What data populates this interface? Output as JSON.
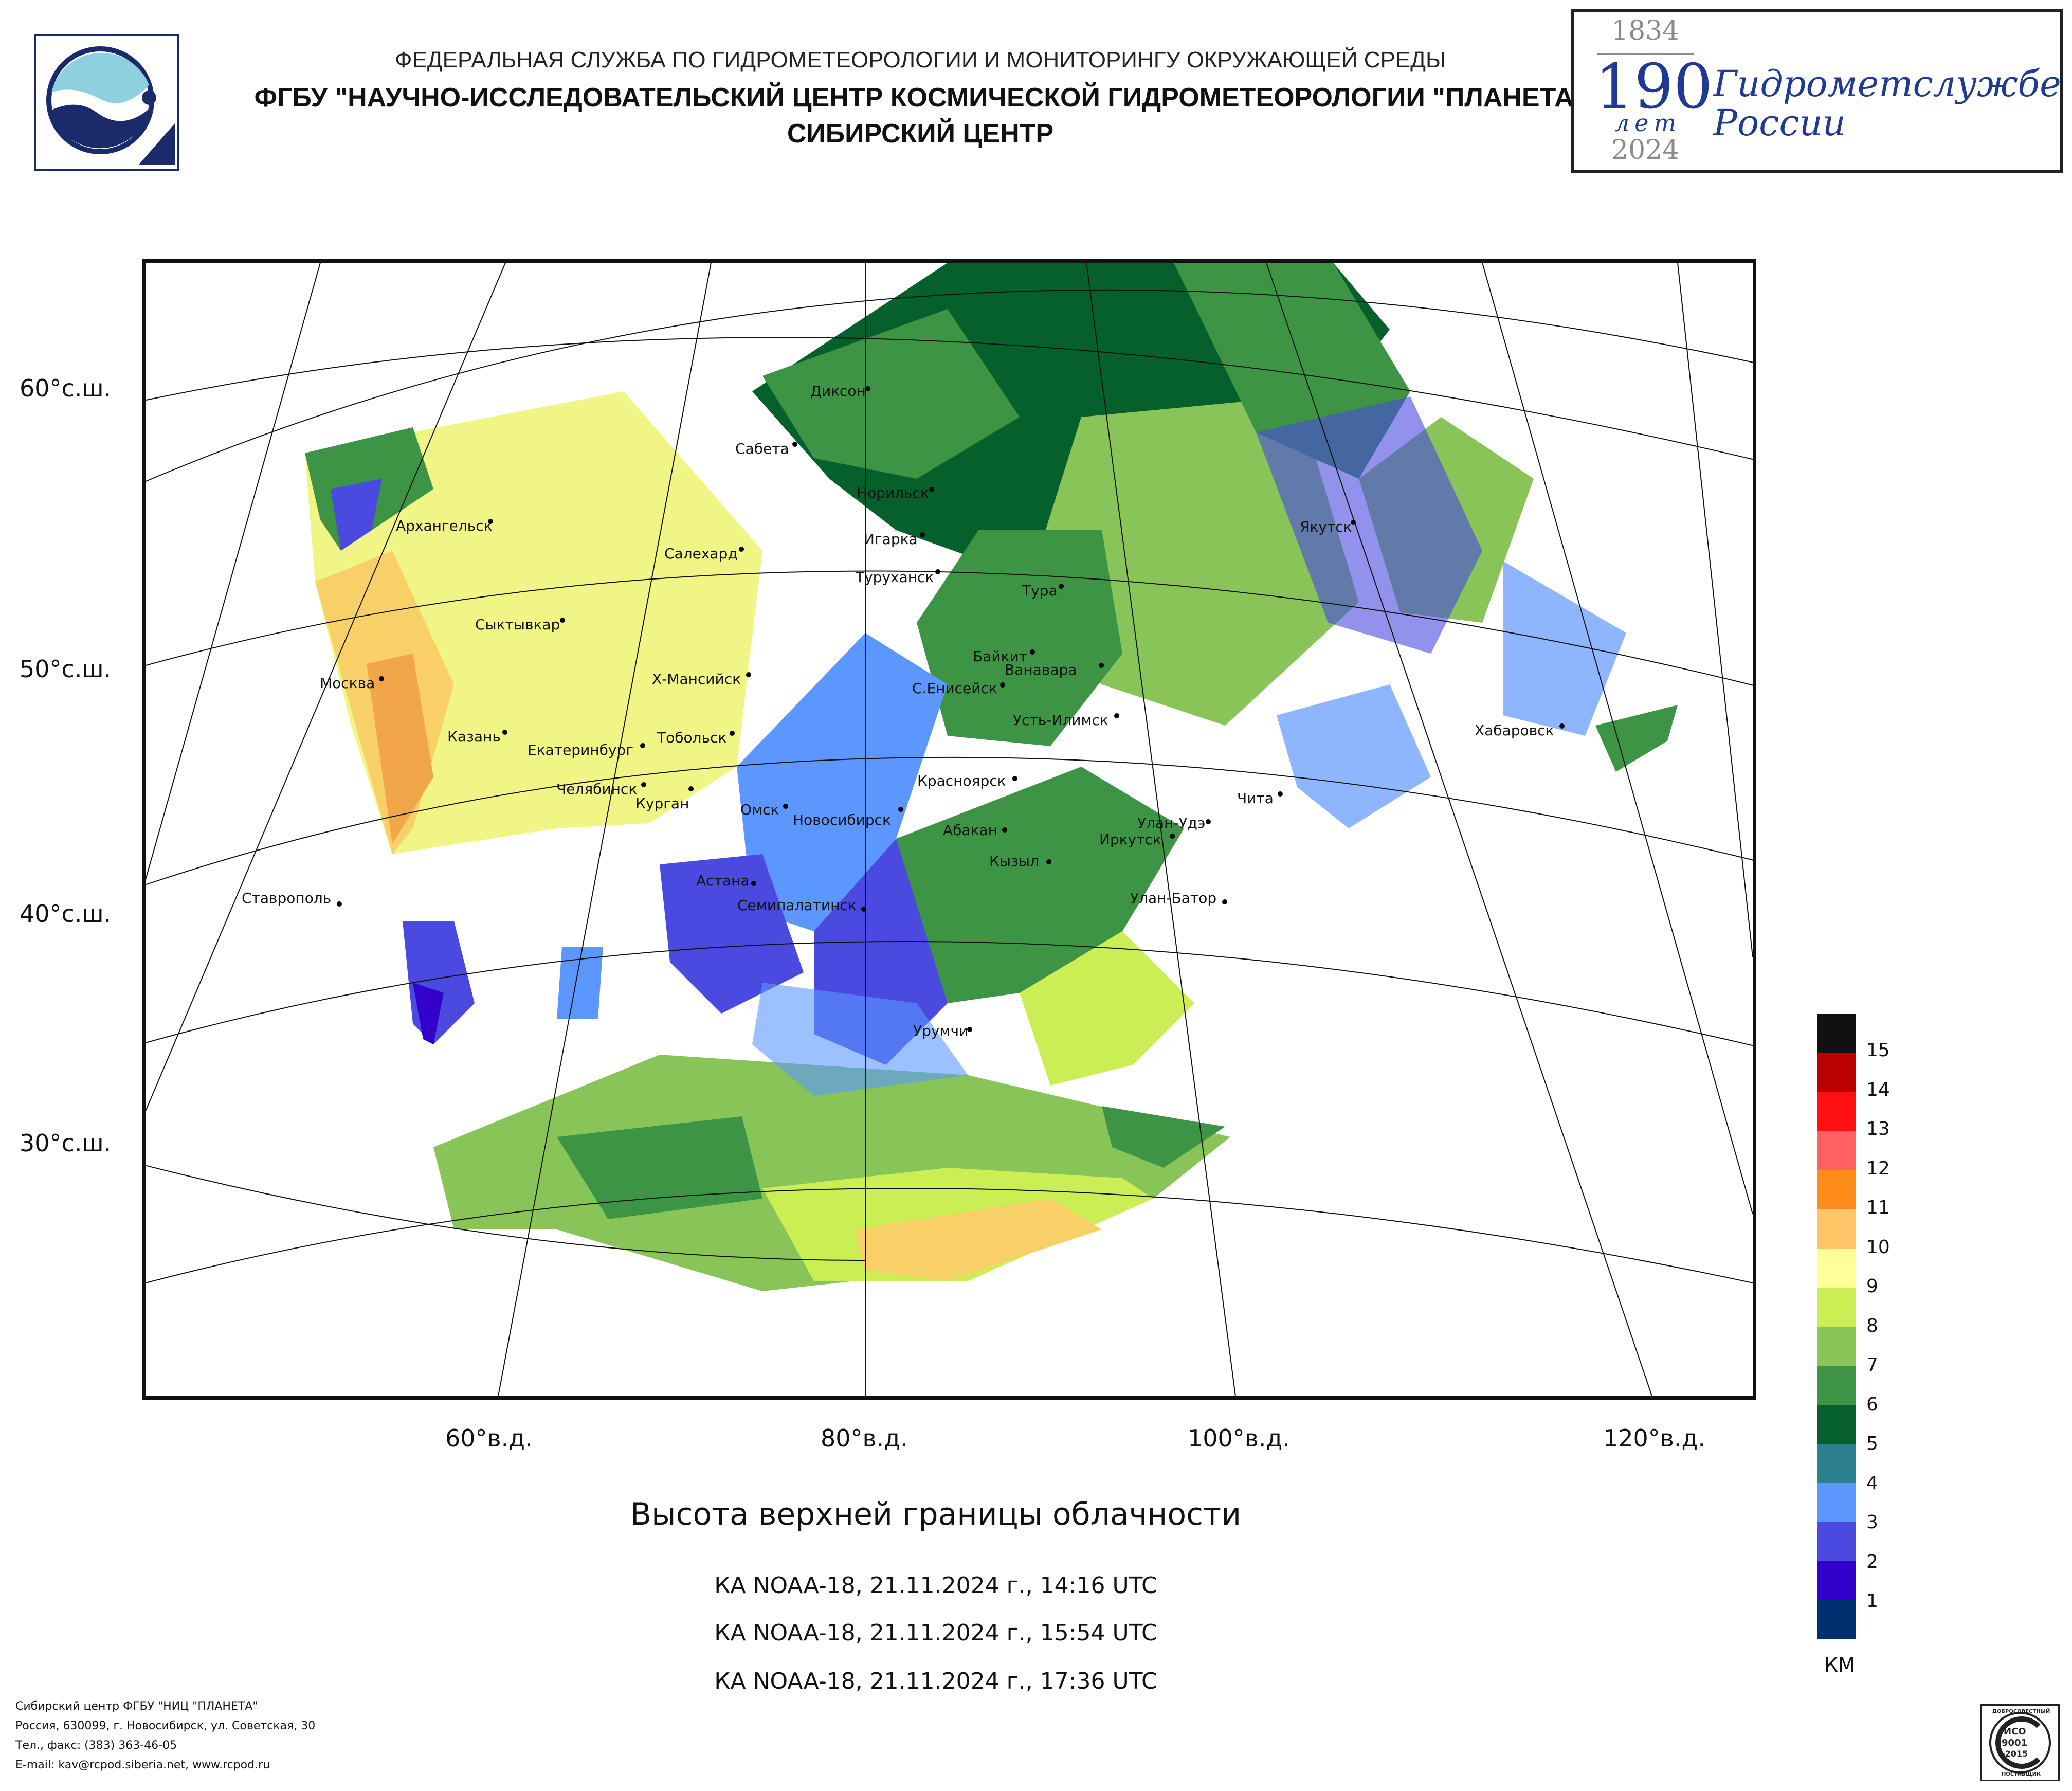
{
  "header": {
    "line1": "ФЕДЕРАЛЬНАЯ СЛУЖБА ПО ГИДРОМЕТЕОРОЛОГИИ И МОНИТОРИНГУ ОКРУЖАЮЩЕЙ СРЕДЫ",
    "line2": "ФГБУ \"НАУЧНО-ИССЛЕДОВАТЕЛЬСКИЙ ЦЕНТР КОСМИЧЕСКОЙ ГИДРОМЕТЕОРОЛОГИИ \"ПЛАНЕТА\"",
    "line3": "СИБИРСКИЙ ЦЕНТР"
  },
  "anniversary": {
    "year_start": "1834",
    "number": "190",
    "unit": "лет",
    "year_end": "2024",
    "text_line1": "Гидрометслужбе",
    "text_line2": "России"
  },
  "map": {
    "lat_labels": [
      "60°с.ш.",
      "50°с.ш.",
      "40°с.ш.",
      "30°с.ш."
    ],
    "lon_labels": [
      "60°в.д.",
      "80°в.д.",
      "100°в.д.",
      "120°в.д."
    ],
    "cities": [
      {
        "name": "Диксон"
      },
      {
        "name": "Сабета"
      },
      {
        "name": "Норильск"
      },
      {
        "name": "Архангельск"
      },
      {
        "name": "Салехард"
      },
      {
        "name": "Игарка"
      },
      {
        "name": "Туруханск"
      },
      {
        "name": "Тура"
      },
      {
        "name": "Якутск"
      },
      {
        "name": "Сыктывкар"
      },
      {
        "name": "Байкит"
      },
      {
        "name": "Ванавара"
      },
      {
        "name": "Москва"
      },
      {
        "name": "Х-Мансийск"
      },
      {
        "name": "С.Енисейск"
      },
      {
        "name": "Усть-Илимск"
      },
      {
        "name": "Хабаровск"
      },
      {
        "name": "Казань"
      },
      {
        "name": "Екатеринбург"
      },
      {
        "name": "Тобольск"
      },
      {
        "name": "Красноярск"
      },
      {
        "name": "Чита"
      },
      {
        "name": "Челябинск"
      },
      {
        "name": "Курган"
      },
      {
        "name": "Омск"
      },
      {
        "name": "Новосибирск"
      },
      {
        "name": "Абакан"
      },
      {
        "name": "Улан-Удэ"
      },
      {
        "name": "Иркутск"
      },
      {
        "name": "Кызыл"
      },
      {
        "name": "Астана"
      },
      {
        "name": "Ставрополь"
      },
      {
        "name": "Семипалатинск"
      },
      {
        "name": "Улан-Батор"
      },
      {
        "name": "Урумчи"
      }
    ]
  },
  "title": "Высота верхней границы облачности",
  "passes": [
    "КА NOAA-18, 21.11.2024 г., 14:16 UTC",
    "КА NOAA-18, 21.11.2024 г., 15:54 UTC",
    "КА NOAA-18, 21.11.2024 г., 17:36 UTC"
  ],
  "legend": {
    "unit": "КМ",
    "labels": [
      "15",
      "14",
      "13",
      "12",
      "11",
      "10",
      "9",
      "8",
      "7",
      "6",
      "5",
      "4",
      "3",
      "2",
      "1"
    ],
    "colors": [
      "#111111",
      "#bb0000",
      "#ff1010",
      "#ff6060",
      "#ff8c1a",
      "#ffc466",
      "#ffff99",
      "#ccee55",
      "#88c458",
      "#3c9444",
      "#05602c",
      "#2b7f8f",
      "#5c97ff",
      "#4a4ae0",
      "#3300cc",
      "#003070"
    ]
  },
  "footer": {
    "line1": "Сибирский центр ФГБУ \"НИЦ \"ПЛАНЕТА\"",
    "line2": "Россия, 630099, г. Новосибирск, ул. Советская, 30",
    "line3": "Тел., факс: (383) 363-46-05",
    "line4": "E-mail: kav@rcpod.siberia.net, www.rcpod.ru"
  },
  "iso_badge": {
    "top_text": "ДОБРОСОВЕСТНЫЙ",
    "code1": "ИСО",
    "code2": "9001",
    "code3": "-2015",
    "bottom_text": "ПОСТАВЩИК"
  }
}
